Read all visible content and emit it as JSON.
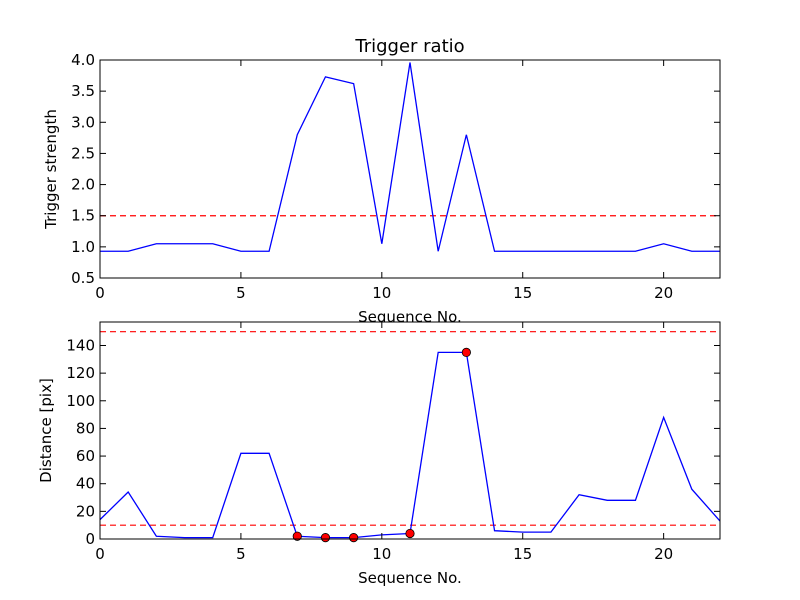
{
  "chart_data": [
    {
      "type": "line",
      "title": "Trigger ratio",
      "xlabel": "Sequence No.",
      "ylabel": "Trigger strength",
      "xlim": [
        0,
        22
      ],
      "ylim": [
        0.5,
        4.0
      ],
      "xticks": [
        0,
        5,
        10,
        15,
        20
      ],
      "yticks": [
        0.5,
        1.0,
        1.5,
        2.0,
        2.5,
        3.0,
        3.5,
        4.0
      ],
      "tick_decimals": 1,
      "grid": false,
      "line_color": "#0000ff",
      "x": [
        0,
        1,
        2,
        3,
        4,
        5,
        6,
        7,
        8,
        9,
        10,
        11,
        12,
        13,
        14,
        15,
        16,
        17,
        18,
        19,
        20,
        21,
        22
      ],
      "series": [
        {
          "values": [
            0.93,
            0.93,
            1.05,
            1.05,
            1.05,
            0.93,
            0.93,
            2.8,
            3.73,
            3.62,
            1.05,
            3.96,
            0.93,
            2.8,
            0.93,
            0.93,
            0.93,
            0.93,
            0.93,
            0.93,
            1.05,
            0.93,
            0.93
          ]
        }
      ],
      "thresholds": [
        {
          "y": 1.5,
          "color": "#ff0000",
          "style": "dashed"
        }
      ],
      "markers": []
    },
    {
      "type": "line",
      "title": "",
      "xlabel": "Sequence No.",
      "ylabel": "Distance [pix]",
      "xlim": [
        0,
        22
      ],
      "ylim": [
        0,
        157
      ],
      "xticks": [
        0,
        5,
        10,
        15,
        20
      ],
      "yticks": [
        0,
        20,
        40,
        60,
        80,
        100,
        120,
        140
      ],
      "tick_decimals": 0,
      "grid": false,
      "line_color": "#0000ff",
      "x": [
        0,
        1,
        2,
        3,
        4,
        5,
        6,
        7,
        8,
        9,
        10,
        11,
        12,
        13,
        14,
        15,
        16,
        17,
        18,
        19,
        20,
        21,
        22
      ],
      "series": [
        {
          "values": [
            14,
            34,
            2,
            1,
            1,
            62,
            62,
            2,
            1,
            1,
            3,
            4,
            135,
            135,
            6,
            5,
            5,
            32,
            28,
            28,
            88,
            36,
            13
          ]
        }
      ],
      "thresholds": [
        {
          "y": 150,
          "color": "#ff0000",
          "style": "dashed"
        },
        {
          "y": 10,
          "color": "#ff0000",
          "style": "dashed"
        }
      ],
      "markers": [
        {
          "x": 7,
          "y": 2
        },
        {
          "x": 8,
          "y": 1
        },
        {
          "x": 9,
          "y": 1
        },
        {
          "x": 11,
          "y": 4
        },
        {
          "x": 13,
          "y": 135
        }
      ],
      "marker_color": "#ff0000"
    }
  ]
}
